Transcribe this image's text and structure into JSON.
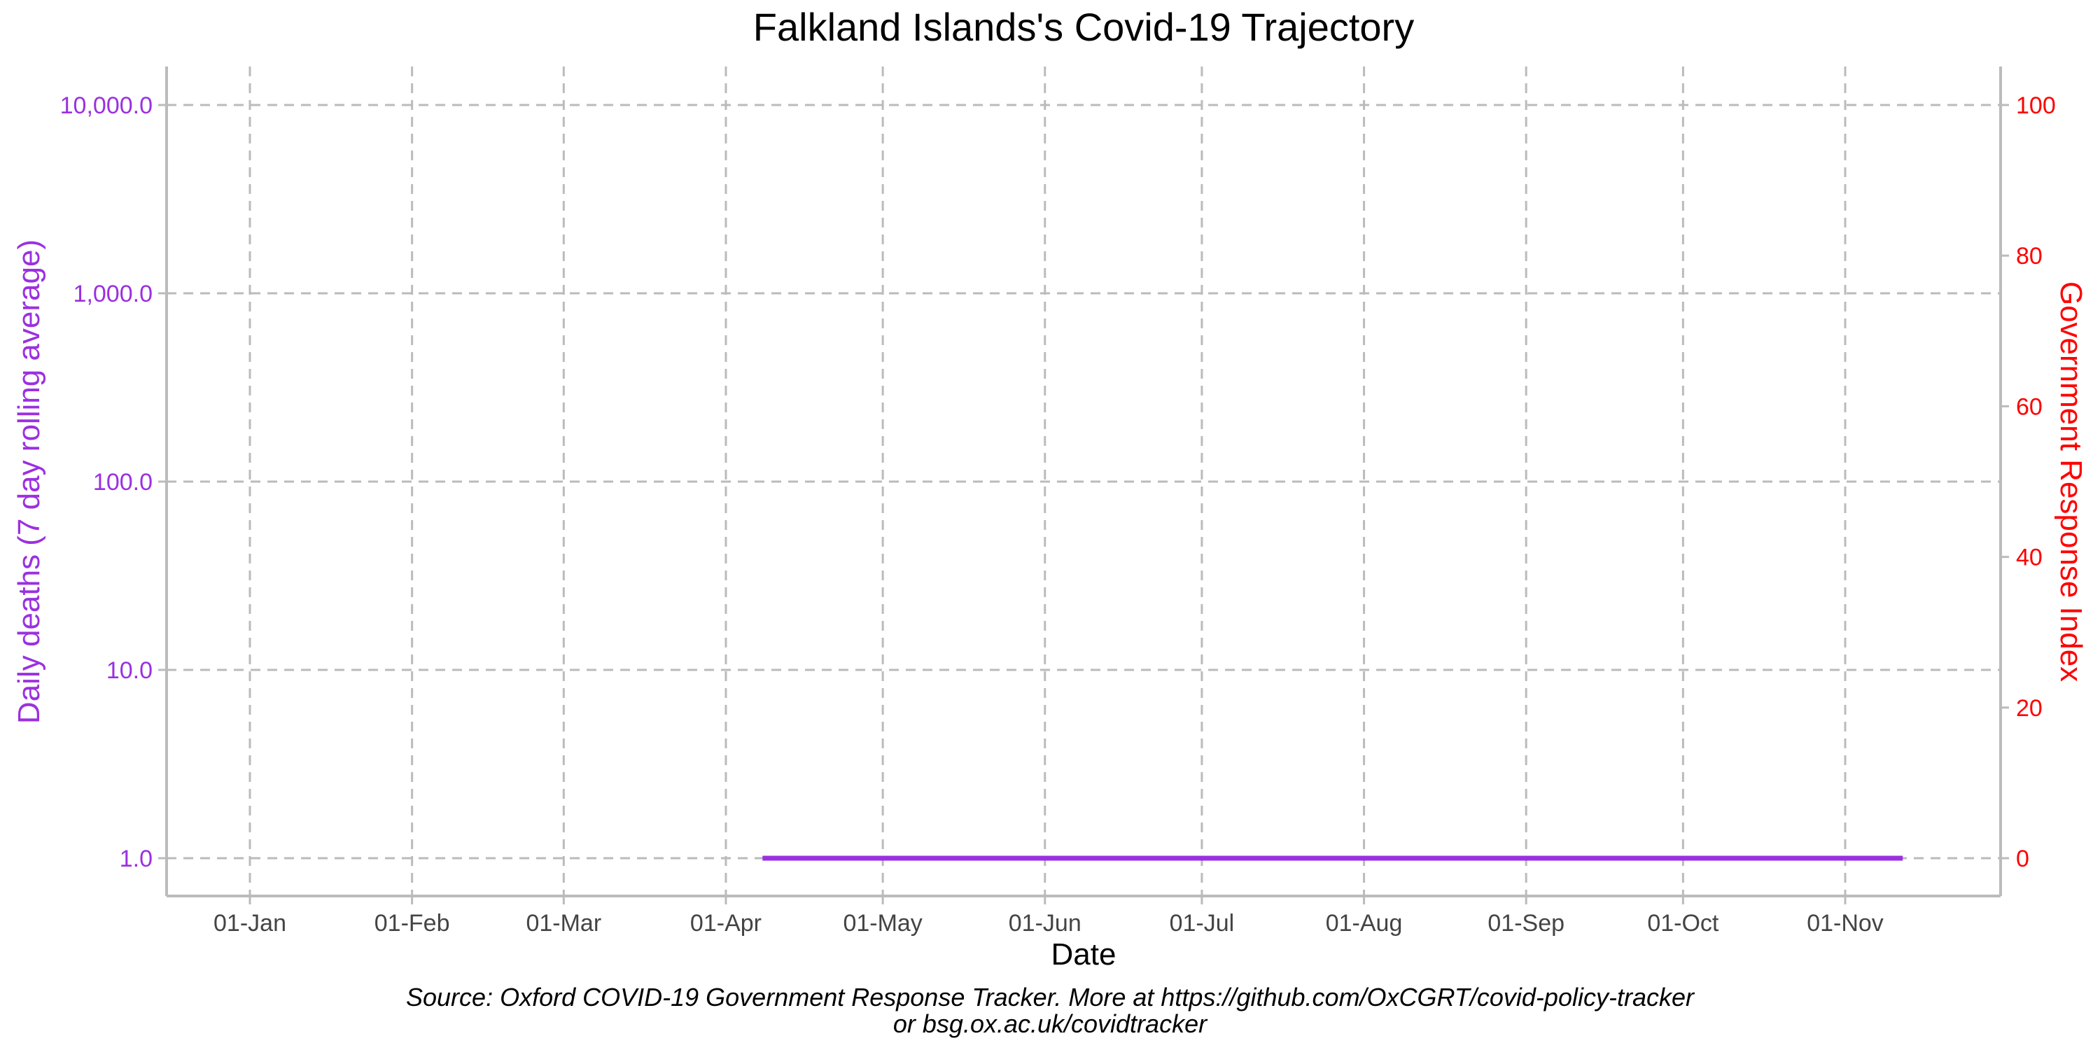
{
  "chart_data": {
    "type": "line",
    "title": "Falkland Islands's Covid-19 Trajectory",
    "xlabel": "Date",
    "ylabel": "Daily deaths (7 day rolling average)",
    "y2label": "Government Response Index",
    "x_ticks": [
      "01-Jan",
      "01-Feb",
      "01-Mar",
      "01-Apr",
      "01-May",
      "01-Jun",
      "01-Jul",
      "01-Aug",
      "01-Sep",
      "01-Oct",
      "01-Nov"
    ],
    "y_ticks": [
      "1.0",
      "10.0",
      "100.0",
      "1,000.0",
      "10,000.0"
    ],
    "y_tick_values": [
      1,
      10,
      100,
      1000,
      10000
    ],
    "y2_ticks": [
      "0",
      "20",
      "40",
      "60",
      "80",
      "100"
    ],
    "y2_tick_values": [
      0,
      20,
      40,
      60,
      80,
      100
    ],
    "y_scale": "log",
    "ylim": [
      1,
      10000
    ],
    "y2lim": [
      0,
      100
    ],
    "xlim": [
      "2020-01-01",
      "2020-11-01"
    ],
    "grid": true,
    "series": [
      {
        "name": "",
        "axis": "left",
        "color": "#9B30E0",
        "points": [
          {
            "x": "2020-04-08",
            "y": 1.0
          },
          {
            "x": "2020-11-12",
            "y": 1.0
          }
        ]
      }
    ]
  },
  "caption": {
    "line1": "Source: Oxford COVID-19 Government Response Tracker. More at https://github.com/OxCGRT/covid-policy-tracker",
    "line2": "or bsg.ox.ac.uk/covidtracker"
  },
  "colors": {
    "left_axis": "#9B30E0",
    "right_axis": "#FF0000",
    "grid": "#BBBBBB",
    "axis_line": "#BBBBBB"
  }
}
